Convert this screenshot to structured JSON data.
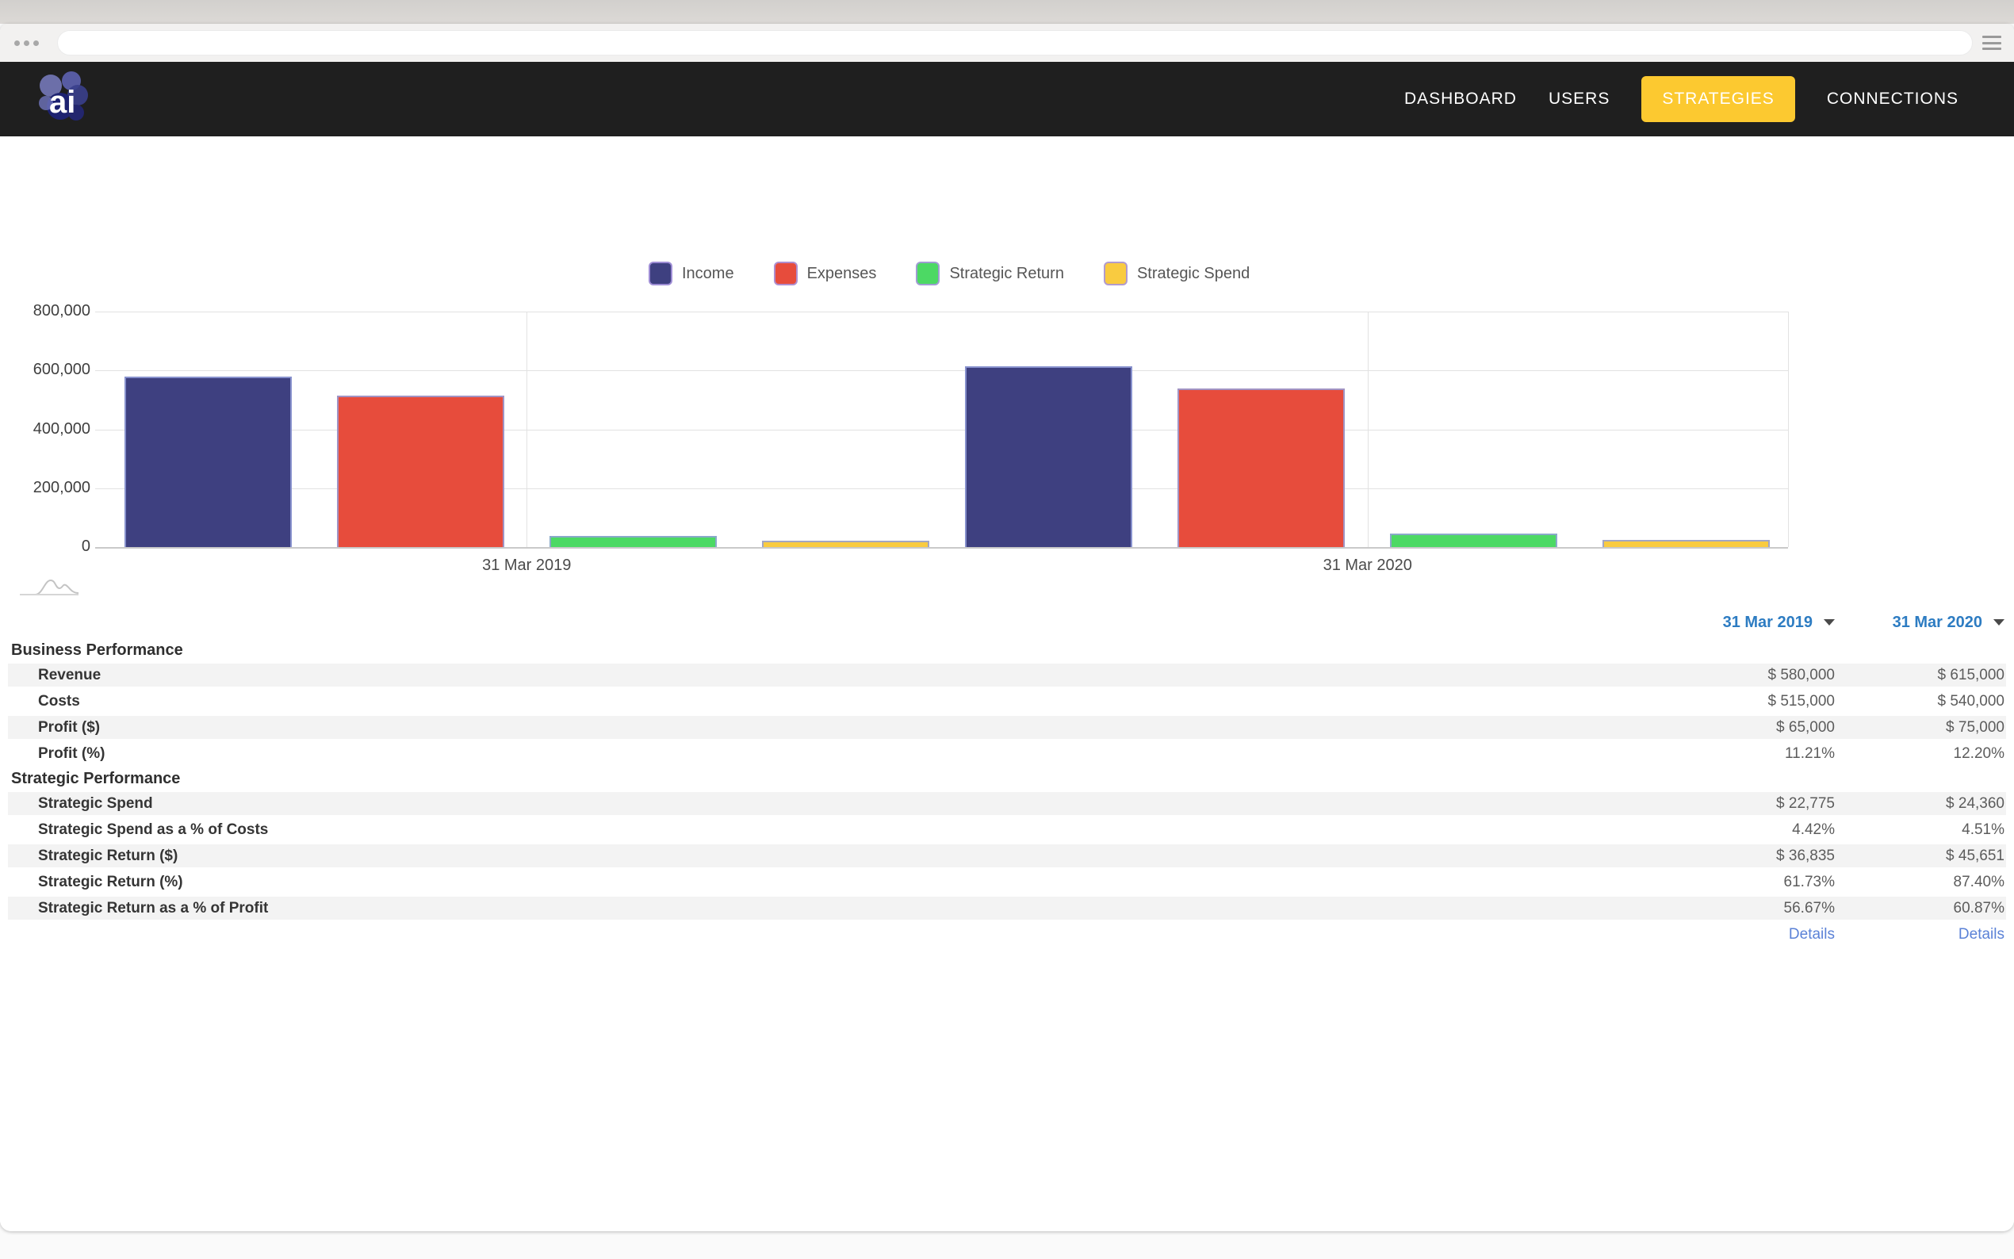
{
  "browser": {
    "address_value": "",
    "window_controls_icon": "three-dots",
    "menu_icon": "hamburger"
  },
  "navbar": {
    "logo_text": "ai",
    "items": [
      {
        "label": "DASHBOARD",
        "active": false
      },
      {
        "label": "USERS",
        "active": false
      },
      {
        "label": "STRATEGIES",
        "active": true
      },
      {
        "label": "CONNECTIONS",
        "active": false
      }
    ]
  },
  "colors": {
    "accent_yellow": "#fcc930",
    "income": "#3e4080",
    "expenses": "#e74c3c",
    "strategic_return": "#4cd964",
    "strategic_spend": "#f9cb40",
    "bar_border": "#94a0da",
    "column_header_blue": "#2d7cc2",
    "details_link_blue": "#5b82d7"
  },
  "chart_data": {
    "type": "bar",
    "categories": [
      "31 Mar 2019",
      "31 Mar 2020"
    ],
    "series": [
      {
        "name": "Income",
        "color": "#3e4080",
        "values": [
          580000,
          615000
        ]
      },
      {
        "name": "Expenses",
        "color": "#e74c3c",
        "values": [
          515000,
          540000
        ]
      },
      {
        "name": "Strategic Return",
        "color": "#4cd964",
        "values": [
          36835,
          45651
        ]
      },
      {
        "name": "Strategic Spend",
        "color": "#f9cb40",
        "values": [
          22775,
          24360
        ]
      }
    ],
    "title": "",
    "xlabel": "",
    "ylabel": "",
    "ylim": [
      0,
      800000
    ],
    "yticks": [
      800000,
      600000,
      400000,
      200000,
      0
    ],
    "grid": true,
    "legend_position": "top"
  },
  "table": {
    "columns": [
      {
        "label": "31 Mar 2019"
      },
      {
        "label": "31 Mar 2020"
      }
    ],
    "sections": [
      {
        "title": "Business Performance",
        "rows": [
          {
            "label": "Revenue",
            "values": [
              "$ 580,000",
              "$ 615,000"
            ]
          },
          {
            "label": "Costs",
            "values": [
              "$ 515,000",
              "$ 540,000"
            ]
          },
          {
            "label": "Profit ($)",
            "values": [
              "$ 65,000",
              "$ 75,000"
            ]
          },
          {
            "label": "Profit (%)",
            "values": [
              "11.21%",
              "12.20%"
            ]
          }
        ]
      },
      {
        "title": "Strategic Performance",
        "rows": [
          {
            "label": "Strategic Spend",
            "values": [
              "$ 22,775",
              "$ 24,360"
            ]
          },
          {
            "label": "Strategic Spend as a % of Costs",
            "values": [
              "4.42%",
              "4.51%"
            ]
          },
          {
            "label": "Strategic Return ($)",
            "values": [
              "$ 36,835",
              "$ 45,651"
            ]
          },
          {
            "label": "Strategic Return (%)",
            "values": [
              "61.73%",
              "87.40%"
            ]
          },
          {
            "label": "Strategic Return as a % of Profit",
            "values": [
              "56.67%",
              "60.87%"
            ]
          }
        ]
      }
    ],
    "footer_links": [
      "Details",
      "Details"
    ]
  }
}
